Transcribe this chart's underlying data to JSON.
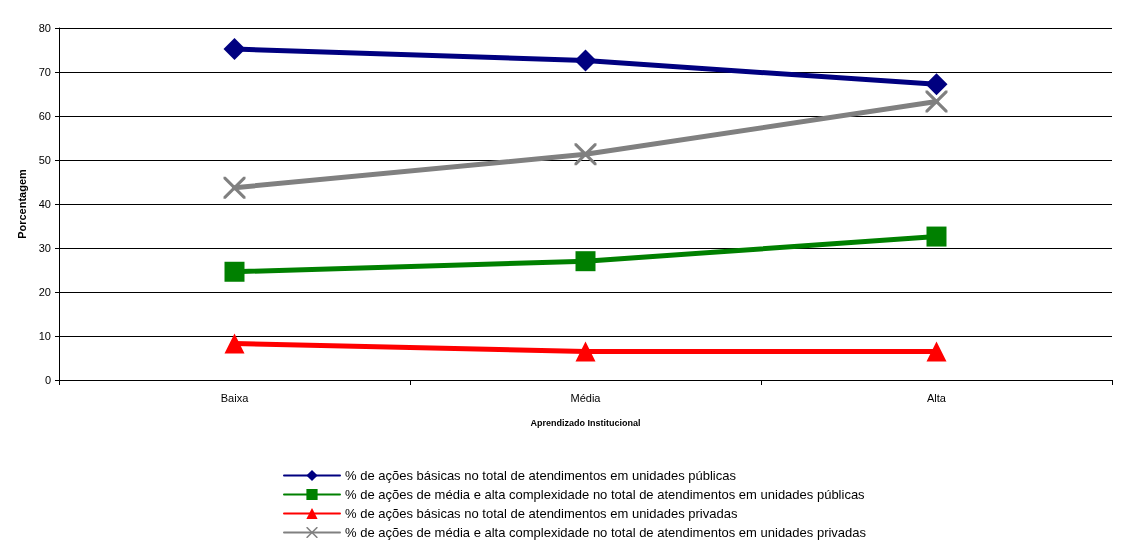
{
  "chart_data": {
    "type": "line",
    "xlabel": "Aprendizado Institucional",
    "ylabel": "Porcentagem",
    "categories": [
      "Baixa",
      "Média",
      "Alta"
    ],
    "ylim": [
      0,
      80
    ],
    "yticks": [
      0,
      10,
      20,
      30,
      40,
      50,
      60,
      70,
      80
    ],
    "grid": "y",
    "legend": "bottom",
    "series": [
      {
        "name": "% de ações básicas no total de atendimentos em unidades públicas",
        "color": "#000080",
        "marker": "diamond",
        "values": [
          75.2,
          72.6,
          67.2
        ]
      },
      {
        "name": "% de ações de média e alta complexidade no total de atendimentos em unidades públicas",
        "color": "#008000",
        "marker": "square",
        "values": [
          24.6,
          27.0,
          32.6
        ]
      },
      {
        "name": "% de ações básicas no total de atendimentos em unidades privadas",
        "color": "#ff0000",
        "marker": "triangle",
        "values": [
          8.3,
          6.5,
          6.5
        ]
      },
      {
        "name": "% de ações de média e alta complexidade no total de atendimentos em unidades privadas",
        "color": "#808080",
        "marker": "cross",
        "values": [
          43.7,
          51.3,
          63.3
        ]
      }
    ]
  }
}
